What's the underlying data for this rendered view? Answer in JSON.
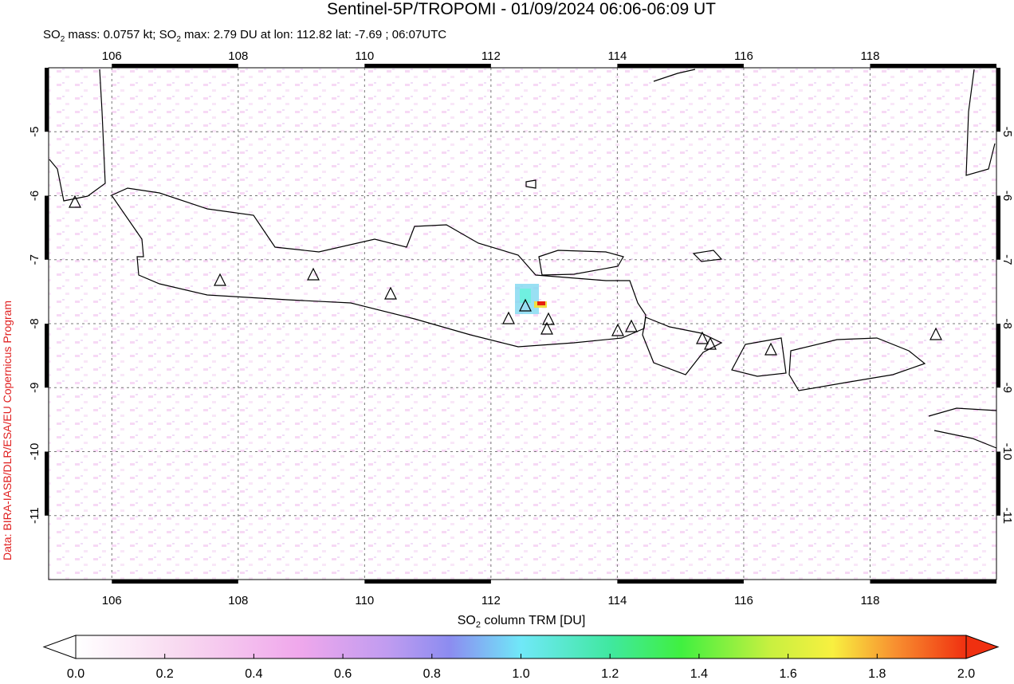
{
  "header": {
    "title": "Sentinel-5P/TROPOMI - 01/09/2024 06:06-06:09 UT",
    "subtitle": [
      "SO",
      "2",
      " mass: 0.0757 kt; SO",
      "2",
      " max: 2.79 DU at lon: 112.82 lat: -7.69 ; 06:07UTC"
    ]
  },
  "map": {
    "lon_range": [
      105,
      120
    ],
    "lat_range": [
      -4,
      -12
    ],
    "lon_ticks": [
      106,
      108,
      110,
      112,
      114,
      116,
      118
    ],
    "lat_ticks": [
      -5,
      -6,
      -7,
      -8,
      -9,
      -10,
      -11
    ]
  },
  "colorbar": {
    "label": [
      "SO",
      "2",
      " column TRM [DU]"
    ],
    "range": [
      0,
      2
    ],
    "ticks": [
      {
        "value": 0,
        "label": "0.0"
      },
      {
        "value": 0.2,
        "label": "0.2"
      },
      {
        "value": 0.4,
        "label": "0.4"
      },
      {
        "value": 0.6,
        "label": "0.6"
      },
      {
        "value": 0.8,
        "label": "0.8"
      },
      {
        "value": 1,
        "label": "1.0"
      },
      {
        "value": 1.2,
        "label": "1.2"
      },
      {
        "value": 1.4,
        "label": "1.4"
      },
      {
        "value": 1.6,
        "label": "1.6"
      },
      {
        "value": 1.8,
        "label": "1.8"
      },
      {
        "value": 2,
        "label": "2.0"
      }
    ]
  },
  "credit": "Data: BIRA-IASB/DLR/ESA/EU Copernicus Program"
}
